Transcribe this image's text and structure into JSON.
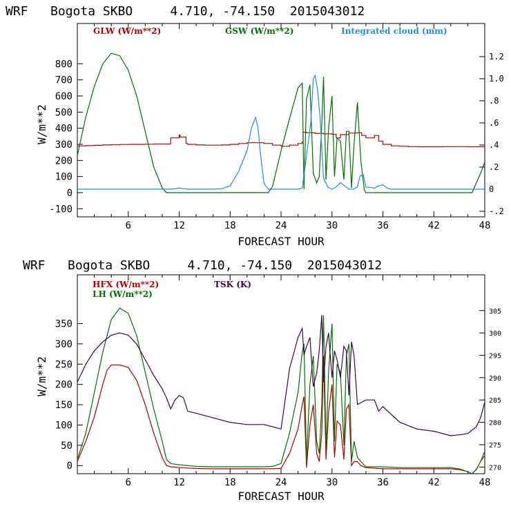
{
  "chart_data": [
    {
      "type": "line",
      "title": "WRF   Bogota SKBO     4.710, -74.150  2015043012",
      "xlabel": "FORECAST HOUR",
      "ylabel": "W/m**2",
      "xlim": [
        0,
        48
      ],
      "ylim": [
        -150,
        1050
      ],
      "y2lim": [
        -0.25,
        1.5
      ],
      "xticks": [
        "6",
        "12",
        "18",
        "24",
        "30",
        "36",
        "42",
        "48"
      ],
      "yticks": [
        "-100",
        "0",
        "100",
        "200",
        "300",
        "400",
        "500",
        "600",
        "700",
        "800"
      ],
      "y2ticks": [
        "-.2",
        "0",
        ".2",
        ".4",
        ".6",
        ".8",
        "1.0",
        "1.2"
      ],
      "legend_placement": "top",
      "series": [
        {
          "name": "GLW (W/m**2)",
          "axis": "left",
          "color": "#b00000",
          "step": true,
          "x": [
            0,
            1,
            2,
            3,
            4,
            5,
            6,
            7,
            8,
            9,
            10,
            10.9,
            11,
            12,
            12.1,
            12.8,
            13,
            14,
            15,
            16,
            17,
            18,
            19,
            20,
            21,
            22,
            23,
            24,
            25,
            26,
            26.5,
            26.6,
            27,
            28,
            29,
            30,
            30.5,
            31,
            32,
            33,
            33.5,
            34,
            35,
            35.5,
            36,
            37,
            38,
            39,
            40,
            41,
            42,
            43,
            44,
            45,
            46,
            47,
            48
          ],
          "y": [
            290,
            292,
            294,
            296,
            297,
            299,
            300,
            300,
            301,
            302,
            302,
            302,
            340,
            358,
            345,
            305,
            300,
            296,
            295,
            295,
            296,
            300,
            305,
            310,
            310,
            305,
            295,
            288,
            295,
            305,
            315,
            375,
            372,
            368,
            365,
            362,
            340,
            360,
            370,
            372,
            355,
            340,
            355,
            320,
            300,
            290,
            288,
            286,
            285,
            285,
            285,
            286,
            286,
            286,
            285,
            285,
            285
          ]
        },
        {
          "name": "GSW (W/m**2)",
          "axis": "left",
          "color": "#007000",
          "step": false,
          "x": [
            0,
            0.5,
            1,
            2,
            3,
            4,
            5,
            6,
            7,
            8,
            9,
            10,
            10.5,
            10.8,
            11,
            12,
            13,
            14,
            15,
            16,
            17,
            18,
            19,
            20,
            21,
            22,
            22.5,
            23,
            23.5,
            24,
            25,
            26,
            26.5,
            26.7,
            27,
            27.4,
            27.8,
            28.2,
            28.5,
            28.8,
            29,
            29.3,
            29.6,
            30,
            30.3,
            30.6,
            31,
            31.4,
            31.7,
            32,
            32.3,
            32.6,
            33,
            33.4,
            33.8,
            34,
            36,
            38,
            40,
            42,
            44,
            46,
            46.5,
            47,
            47.5,
            48
          ],
          "y": [
            230,
            350,
            470,
            660,
            800,
            865,
            850,
            760,
            600,
            380,
            160,
            30,
            0,
            0,
            0,
            0,
            0,
            0,
            0,
            0,
            0,
            0,
            0,
            0,
            0,
            0,
            0,
            40,
            150,
            260,
            460,
            650,
            680,
            20,
            580,
            670,
            120,
            60,
            100,
            420,
            720,
            80,
            400,
            600,
            100,
            340,
            320,
            80,
            380,
            380,
            30,
            300,
            560,
            200,
            20,
            0,
            0,
            0,
            0,
            0,
            0,
            0,
            0,
            60,
            120,
            190
          ]
        },
        {
          "name": "Integrated cloud (mm)",
          "axis": "right",
          "color": "#1e90d6",
          "step": false,
          "x": [
            0,
            5,
            10,
            11,
            11.5,
            12,
            12.5,
            13,
            16,
            17,
            18,
            19,
            20,
            20.5,
            21,
            21.3,
            21.6,
            22,
            22.5,
            23,
            24,
            25,
            26,
            26.5,
            27,
            27.5,
            27.8,
            28,
            28.3,
            28.6,
            29,
            29.5,
            30,
            30.5,
            31,
            31.5,
            32,
            32.5,
            33,
            33.3,
            33.7,
            34,
            35,
            35.5,
            36,
            36.5,
            37,
            40,
            44,
            48
          ],
          "y": [
            0,
            0,
            0,
            0,
            0.005,
            0.01,
            0.005,
            0,
            0,
            0.005,
            0.03,
            0.16,
            0.35,
            0.55,
            0.65,
            0.55,
            0.3,
            0.05,
            0,
            0,
            0,
            0,
            0,
            0.01,
            0.3,
            0.6,
            1.0,
            1.03,
            0.9,
            0.65,
            0.1,
            0.02,
            0,
            0.02,
            0.06,
            0.03,
            0,
            0,
            0.02,
            0.12,
            0.13,
            0.02,
            0.01,
            0.03,
            0.04,
            0.01,
            0,
            0,
            0,
            0
          ]
        }
      ]
    },
    {
      "type": "line",
      "title": "WRF   Bogota SKBO     4.710, -74.150  2015043012",
      "xlabel": "FORECAST HOUR",
      "ylabel": "W/m**2",
      "xlim": [
        0,
        48
      ],
      "ylim": [
        -20,
        470
      ],
      "y2lim": [
        268.5,
        313
      ],
      "xticks": [
        "6",
        "12",
        "18",
        "24",
        "30",
        "36",
        "42",
        "48"
      ],
      "yticks": [
        "0",
        "50",
        "100",
        "150",
        "200",
        "250",
        "300",
        "350"
      ],
      "y2ticks": [
        "270",
        "275",
        "280",
        "285",
        "290",
        "295",
        "300",
        "305"
      ],
      "legend_placement": "top-left",
      "series": [
        {
          "name": "HFX (W/m**2)",
          "axis": "left",
          "color": "#b00000",
          "step": false,
          "x": [
            0,
            1,
            2,
            3,
            3.5,
            4,
            5,
            6,
            7,
            8,
            9,
            10,
            10.5,
            11,
            12,
            13,
            14,
            16,
            18,
            20,
            22,
            23,
            24,
            25,
            26,
            26.5,
            26.7,
            27,
            27.4,
            27.8,
            28.2,
            28.5,
            28.8,
            29,
            29.3,
            29.6,
            30,
            30.3,
            30.6,
            31,
            31.4,
            31.7,
            32,
            32.3,
            32.6,
            33,
            33.4,
            34,
            36,
            38,
            40,
            42,
            44,
            45,
            46,
            46.5,
            47,
            47.5,
            48
          ],
          "y": [
            10,
            60,
            120,
            200,
            235,
            248,
            248,
            242,
            210,
            150,
            80,
            20,
            0,
            -3,
            -5,
            -6,
            -7,
            -8,
            -8,
            -8,
            -8,
            -8,
            -7,
            30,
            90,
            150,
            170,
            -5,
            100,
            150,
            30,
            10,
            80,
            270,
            15,
            130,
            200,
            20,
            110,
            100,
            15,
            140,
            150,
            0,
            10,
            10,
            0,
            -5,
            -8,
            -8,
            -8,
            -8,
            -8,
            -10,
            -15,
            -20,
            -10,
            10,
            25
          ]
        },
        {
          "name": "LH (W/m**2)",
          "axis": "left",
          "color": "#007000",
          "step": false,
          "x": [
            0,
            1,
            2,
            3,
            4,
            5,
            6,
            7,
            8,
            9,
            10,
            10.5,
            11,
            12,
            13,
            14,
            16,
            18,
            20,
            22,
            23,
            24,
            25,
            26,
            26.5,
            26.7,
            27,
            27.4,
            27.8,
            28.2,
            28.5,
            28.8,
            29,
            29.3,
            29.6,
            30,
            30.3,
            30.6,
            31,
            31.4,
            31.7,
            32,
            32.3,
            32.6,
            33,
            33.4,
            34,
            36,
            38,
            40,
            42,
            44,
            45,
            46,
            46.5,
            47,
            47.5,
            48
          ],
          "y": [
            15,
            80,
            180,
            280,
            360,
            388,
            375,
            320,
            230,
            140,
            60,
            15,
            5,
            2,
            0,
            -2,
            -3,
            -3,
            -3,
            -3,
            -2,
            5,
            80,
            180,
            280,
            300,
            10,
            200,
            270,
            60,
            30,
            150,
            370,
            40,
            230,
            350,
            60,
            250,
            230,
            50,
            270,
            300,
            10,
            60,
            20,
            10,
            -3,
            -3,
            -5,
            -5,
            -5,
            -5,
            -8,
            -15,
            -20,
            -10,
            10,
            35
          ]
        },
        {
          "name": "TSK (K)",
          "axis": "right",
          "color": "#400050",
          "step": false,
          "x": [
            0,
            1,
            2,
            3,
            4,
            5,
            6,
            7,
            8,
            9,
            10,
            10.5,
            11,
            11.5,
            12,
            12.5,
            13,
            14,
            16,
            18,
            20,
            22,
            23,
            24,
            25,
            26,
            26.5,
            26.7,
            27,
            27.4,
            27.8,
            28.2,
            28.5,
            28.8,
            29,
            29.3,
            29.6,
            30,
            30.3,
            30.6,
            31,
            31.4,
            31.7,
            32,
            32.3,
            32.6,
            33,
            34,
            35,
            35.5,
            36,
            38,
            40,
            42,
            44,
            45,
            46,
            47,
            47.5,
            48
          ],
          "y": [
            289,
            293,
            296,
            298,
            299.5,
            300,
            299.5,
            297.5,
            294,
            290.5,
            287.5,
            285.5,
            283,
            285,
            286,
            285.5,
            282.5,
            282,
            281,
            280,
            279.5,
            279.5,
            279,
            278.5,
            292,
            299,
            301,
            295,
            297,
            299,
            288,
            291,
            296,
            304,
            289,
            297,
            300,
            290,
            296,
            294,
            290,
            297,
            296,
            286,
            298,
            295,
            284,
            285,
            285,
            282.5,
            283.5,
            280,
            278.5,
            278,
            277,
            277.2,
            277.5,
            279,
            281,
            284.5
          ]
        }
      ]
    }
  ]
}
